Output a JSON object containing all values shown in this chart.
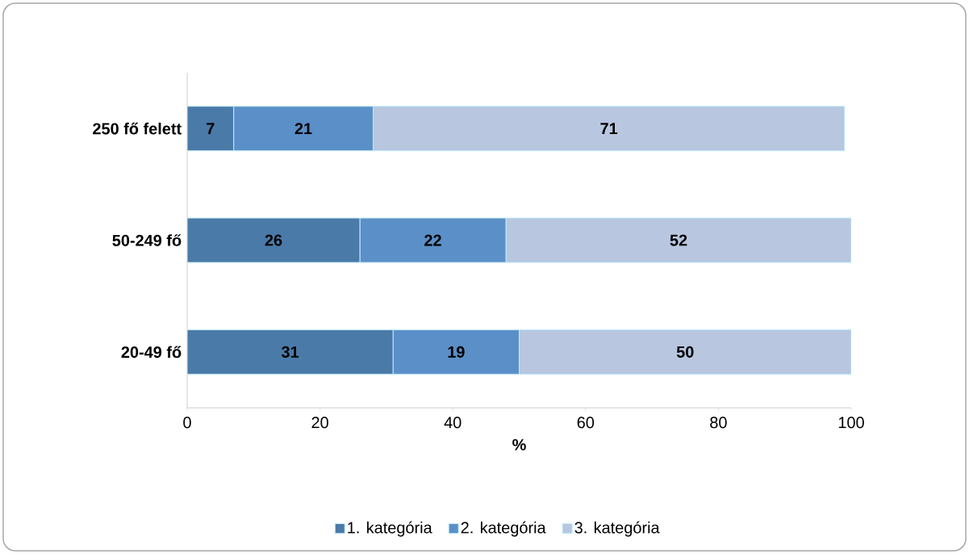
{
  "chart_data": {
    "type": "bar",
    "orientation": "horizontal",
    "stacked": true,
    "categories": [
      "250 fő felett",
      "50-249 fő",
      "20-49 fő"
    ],
    "series": [
      {
        "name": "1. kategória",
        "color": "#4a7aa8",
        "values": [
          7,
          26,
          31
        ]
      },
      {
        "name": "2. kategória",
        "color": "#5b8fc7",
        "values": [
          21,
          22,
          19
        ]
      },
      {
        "name": "3. kategória",
        "color": "#b8c6e0",
        "values": [
          71,
          52,
          50
        ]
      }
    ],
    "xlabel": "%",
    "xlim": [
      0,
      100
    ],
    "xticks": [
      0,
      20,
      40,
      60,
      80,
      100
    ],
    "data_labels": true,
    "legend": "bottom"
  }
}
